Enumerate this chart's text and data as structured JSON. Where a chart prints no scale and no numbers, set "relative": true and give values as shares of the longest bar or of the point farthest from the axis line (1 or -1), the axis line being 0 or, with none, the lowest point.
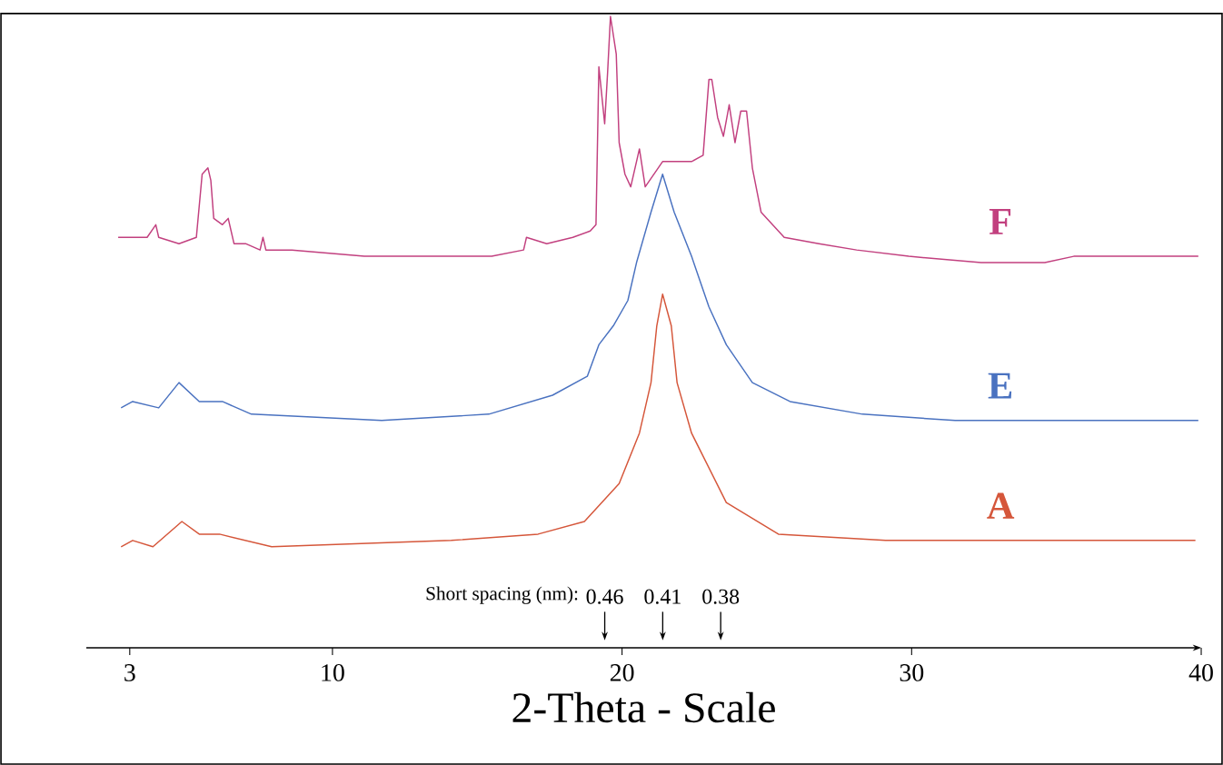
{
  "chart_data": {
    "type": "line",
    "relative": true,
    "xlabel": "2-Theta - Scale",
    "xlim": [
      1.5,
      40
    ],
    "xticks": [
      3,
      10,
      20,
      30,
      40
    ],
    "series": [
      {
        "name": "F",
        "color": "#c2407f",
        "x": [
          2.6,
          3.6,
          3.9,
          4.0,
          4.7,
          5.3,
          5.5,
          5.7,
          5.8,
          5.9,
          6.2,
          6.4,
          6.6,
          7.0,
          7.5,
          7.6,
          7.7,
          8.6,
          11.1,
          12.7,
          14.2,
          15.5,
          16.6,
          16.7,
          17.4,
          18.3,
          18.9,
          19.1,
          19.2,
          19.4,
          19.5,
          19.6,
          19.8,
          19.9,
          20.1,
          20.3,
          20.6,
          20.8,
          21.4,
          22.4,
          22.8,
          23.0,
          23.1,
          23.3,
          23.5,
          23.7,
          23.9,
          24.1,
          24.3,
          24.5,
          24.8,
          25.6,
          26.8,
          28.1,
          29.9,
          32.4,
          34.6,
          35.6,
          37.7,
          39.9
        ],
        "values": [
          0.65,
          0.65,
          0.67,
          0.65,
          0.64,
          0.65,
          0.75,
          0.76,
          0.74,
          0.68,
          0.67,
          0.68,
          0.64,
          0.64,
          0.63,
          0.65,
          0.63,
          0.63,
          0.62,
          0.62,
          0.62,
          0.62,
          0.63,
          0.65,
          0.64,
          0.65,
          0.66,
          0.67,
          0.92,
          0.83,
          0.91,
          1.0,
          0.94,
          0.8,
          0.75,
          0.73,
          0.79,
          0.73,
          0.77,
          0.77,
          0.78,
          0.9,
          0.9,
          0.84,
          0.81,
          0.86,
          0.8,
          0.85,
          0.85,
          0.76,
          0.69,
          0.65,
          0.64,
          0.63,
          0.62,
          0.61,
          0.61,
          0.62,
          0.62,
          0.62
        ]
      },
      {
        "name": "E",
        "color": "#4a72c0",
        "x": [
          2.7,
          3.1,
          4.0,
          4.7,
          5.4,
          6.2,
          7.2,
          11.7,
          15.4,
          17.6,
          18.8,
          19.2,
          19.7,
          20.2,
          20.5,
          21.0,
          21.4,
          21.8,
          22.4,
          23.0,
          23.6,
          24.5,
          25.8,
          28.3,
          31.5,
          36.2,
          39.9
        ],
        "values": [
          0.38,
          0.39,
          0.38,
          0.42,
          0.39,
          0.39,
          0.37,
          0.36,
          0.37,
          0.4,
          0.43,
          0.48,
          0.51,
          0.55,
          0.61,
          0.69,
          0.75,
          0.69,
          0.62,
          0.54,
          0.48,
          0.42,
          0.39,
          0.37,
          0.36,
          0.36,
          0.36
        ]
      },
      {
        "name": "A",
        "color": "#d5563a",
        "x": [
          2.7,
          3.1,
          3.8,
          4.8,
          5.4,
          6.1,
          7.9,
          14.1,
          17.1,
          18.7,
          19.9,
          20.6,
          21.0,
          21.2,
          21.4,
          21.7,
          21.9,
          22.4,
          23.6,
          25.4,
          29.1,
          39.8
        ],
        "values": [
          0.16,
          0.17,
          0.16,
          0.2,
          0.18,
          0.18,
          0.16,
          0.17,
          0.18,
          0.2,
          0.26,
          0.34,
          0.42,
          0.51,
          0.56,
          0.51,
          0.42,
          0.34,
          0.23,
          0.18,
          0.17,
          0.17
        ]
      }
    ],
    "annotations": [
      "Short spacing (nm):",
      "0.46",
      "0.41",
      "0.38"
    ]
  }
}
